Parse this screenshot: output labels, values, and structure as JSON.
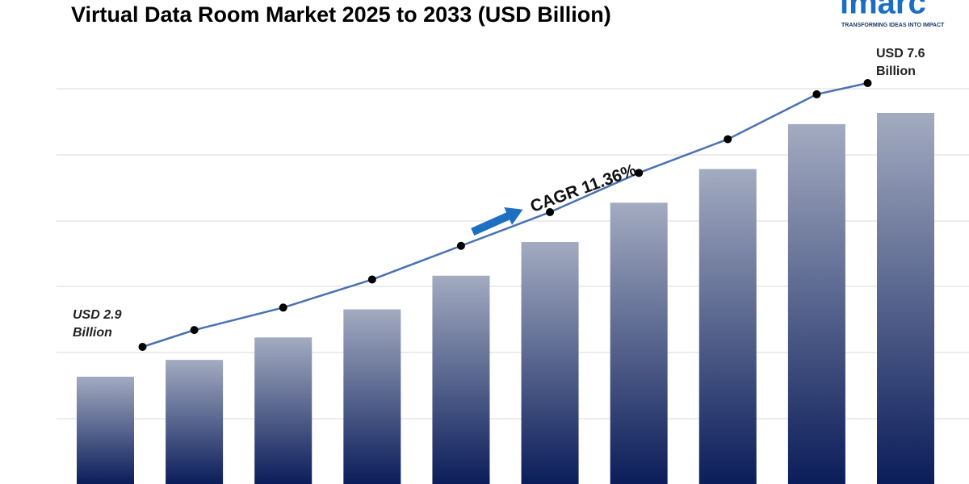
{
  "chart_data": {
    "type": "bar",
    "title": "Virtual Data Room Market 2025 to 2033 (USD Billion)",
    "values": [
      2.9,
      3.2,
      3.6,
      4.1,
      4.7,
      5.3,
      6.0,
      6.6,
      7.4,
      7.6
    ],
    "color": "#0b1d5a",
    "line_color": "#4a72b0",
    "start_label": [
      "USD 2.9",
      "Billion"
    ],
    "end_label": [
      "USD 7.6",
      "Billion"
    ],
    "cagr_label": "CAGR 11.36%"
  },
  "logo": {
    "name": "imarc",
    "tagline": "TRANSFORMING IDEAS INTO IMPACT"
  }
}
